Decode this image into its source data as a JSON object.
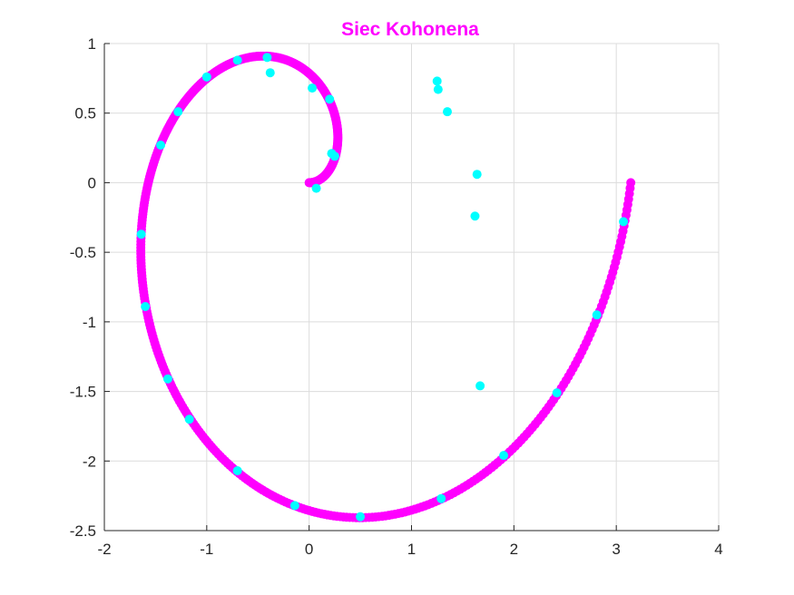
{
  "chart_data": {
    "type": "scatter",
    "title": "Siec Kohonena",
    "xlabel": "",
    "ylabel": "",
    "xlim": [
      -2,
      4
    ],
    "ylim": [
      -2.5,
      1
    ],
    "xticks": [
      -2,
      -1,
      0,
      1,
      2,
      3,
      4
    ],
    "xtick_labels": [
      "-2",
      "-1",
      "0",
      "1",
      "2",
      "3",
      "4"
    ],
    "yticks": [
      1,
      0.5,
      0,
      -0.5,
      -1,
      -1.5,
      -2,
      -2.5
    ],
    "ytick_labels": [
      "1",
      "0.5",
      "0",
      "-0.5",
      "-1",
      "-1.5",
      "-2",
      "-2.5"
    ],
    "grid": true,
    "colors": {
      "title": "#ff00ff",
      "spiral": "#ff00ff",
      "neurons": "#00ffff",
      "grid": "#dcdcdc",
      "axis": "#262626"
    },
    "series": [
      {
        "role": "input-data",
        "kind": "spiral",
        "t_range": [
          0,
          6.2832
        ],
        "x_formula": "t*cos(t)/2",
        "y_formula": "t*sin(t)/2",
        "color": "#ff00ff"
      },
      {
        "role": "neurons",
        "color": "#00ffff",
        "points": [
          [
            0.07,
            -0.04
          ],
          [
            0.25,
            0.19
          ],
          [
            0.22,
            0.21
          ],
          [
            0.2,
            0.6
          ],
          [
            0.03,
            0.68
          ],
          [
            -0.38,
            0.79
          ],
          [
            -0.41,
            0.9
          ],
          [
            -0.7,
            0.88
          ],
          [
            -1.0,
            0.76
          ],
          [
            -1.28,
            0.51
          ],
          [
            -1.45,
            0.27
          ],
          [
            -1.64,
            -0.37
          ],
          [
            -1.6,
            -0.89
          ],
          [
            -1.38,
            -1.41
          ],
          [
            -1.17,
            -1.7
          ],
          [
            -0.7,
            -2.07
          ],
          [
            -0.14,
            -2.32
          ],
          [
            0.5,
            -2.4
          ],
          [
            1.29,
            -2.27
          ],
          [
            1.9,
            -1.96
          ],
          [
            2.42,
            -1.51
          ],
          [
            2.81,
            -0.95
          ],
          [
            3.07,
            -0.28
          ],
          [
            1.67,
            -1.46
          ],
          [
            1.62,
            -0.24
          ],
          [
            1.64,
            0.06
          ],
          [
            1.35,
            0.51
          ],
          [
            1.26,
            0.67
          ],
          [
            1.25,
            0.73
          ]
        ]
      }
    ]
  }
}
